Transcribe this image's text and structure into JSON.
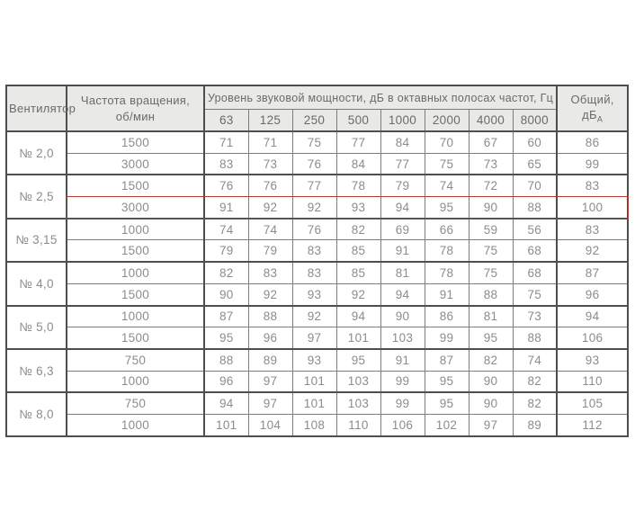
{
  "colors": {
    "highlight_red": "#b23a30",
    "header_background": "#e9e9e7",
    "header_text": "#6a6a6a",
    "cell_text": "#8c8c8c",
    "border_dark": "#4e4e4e",
    "border_medium": "#7d7d7d",
    "border_light": "#9c9c9c"
  },
  "table": {
    "fan_header": "Вентилятор",
    "speed_header_line1": "Частота вращения,",
    "speed_header_line2": "об/мин",
    "band_header": "Уровень звуковой мощности, дБ в октавных полосах частот, Гц",
    "frequencies": [
      "63",
      "125",
      "250",
      "500",
      "1000",
      "2000",
      "4000",
      "8000"
    ],
    "total_header": "Общий, дБ",
    "total_header_subscript": "А",
    "groups": [
      {
        "fan": "№ 2,0",
        "rows": [
          {
            "speed": "1500",
            "levels": [
              71,
              71,
              75,
              77,
              84,
              70,
              67,
              60
            ],
            "total": 86,
            "highlighted": false
          },
          {
            "speed": "3000",
            "levels": [
              83,
              73,
              76,
              84,
              77,
              75,
              73,
              65
            ],
            "total": 99,
            "highlighted": false
          }
        ]
      },
      {
        "fan": "№ 2,5",
        "rows": [
          {
            "speed": "1500",
            "levels": [
              76,
              76,
              77,
              78,
              79,
              74,
              72,
              70
            ],
            "total": 83,
            "highlighted": false
          },
          {
            "speed": "3000",
            "levels": [
              91,
              92,
              92,
              93,
              94,
              95,
              90,
              88
            ],
            "total": 100,
            "highlighted": true
          }
        ]
      },
      {
        "fan": "№ 3,15",
        "rows": [
          {
            "speed": "1000",
            "levels": [
              74,
              74,
              76,
              82,
              69,
              66,
              59,
              56
            ],
            "total": 83,
            "highlighted": false
          },
          {
            "speed": "1500",
            "levels": [
              79,
              79,
              83,
              85,
              91,
              78,
              75,
              68
            ],
            "total": 92,
            "highlighted": false
          }
        ]
      },
      {
        "fan": "№ 4,0",
        "rows": [
          {
            "speed": "1000",
            "levels": [
              82,
              83,
              83,
              85,
              81,
              78,
              75,
              68
            ],
            "total": 87,
            "highlighted": false
          },
          {
            "speed": "1500",
            "levels": [
              90,
              92,
              93,
              92,
              94,
              91,
              88,
              75
            ],
            "total": 96,
            "highlighted": false
          }
        ]
      },
      {
        "fan": "№ 5,0",
        "rows": [
          {
            "speed": "1000",
            "levels": [
              87,
              88,
              92,
              94,
              90,
              86,
              81,
              73
            ],
            "total": 94,
            "highlighted": false
          },
          {
            "speed": "1500",
            "levels": [
              95,
              96,
              97,
              101,
              103,
              99,
              95,
              88
            ],
            "total": 106,
            "highlighted": false
          }
        ]
      },
      {
        "fan": "№ 6,3",
        "rows": [
          {
            "speed": "750",
            "levels": [
              88,
              89,
              93,
              95,
              91,
              87,
              82,
              74
            ],
            "total": 93,
            "highlighted": false
          },
          {
            "speed": "1000",
            "levels": [
              96,
              97,
              101,
              103,
              99,
              95,
              90,
              82
            ],
            "total": 110,
            "highlighted": false
          }
        ]
      },
      {
        "fan": "№ 8,0",
        "rows": [
          {
            "speed": "750",
            "levels": [
              94,
              97,
              101,
              103,
              99,
              95,
              90,
              82
            ],
            "total": 105,
            "highlighted": false
          },
          {
            "speed": "1000",
            "levels": [
              101,
              104,
              108,
              110,
              106,
              102,
              97,
              89
            ],
            "total": 112,
            "highlighted": false
          }
        ]
      }
    ]
  }
}
